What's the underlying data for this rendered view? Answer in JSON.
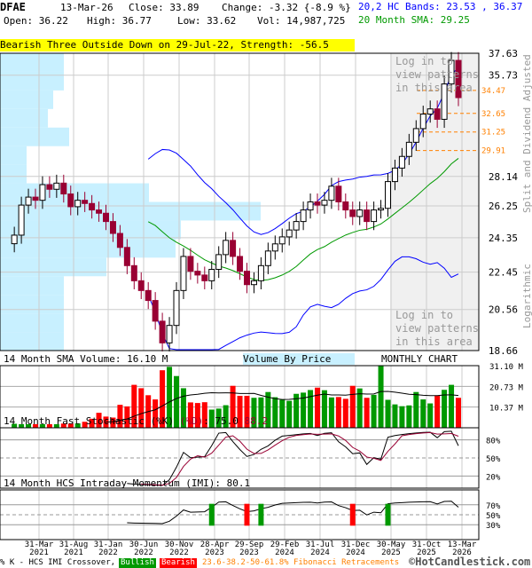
{
  "header": {
    "symbol": "DFAE",
    "date": "13-Mar-26",
    "close": "Close: 33.89",
    "change": "Change: -3.32 {-8.9 %}",
    "open": "Open: 36.22",
    "high": "High: 36.77",
    "low": "Low: 33.62",
    "vol": "Vol: 14,987,725",
    "bands": "20,2 HC Bands: 23.53 , 36.37",
    "sma": "20 Month SMA: 29.25",
    "pattern": "Bearish Three Outside Down on 29-Jul-22, Strength: -56.5"
  },
  "colors": {
    "bull": "#009900",
    "bear": "#ff0000",
    "candle_bear": "#990033",
    "band": "#0000ff",
    "sma": "#009900",
    "fib": "#ff8000",
    "vbp": "#c8f0ff"
  },
  "chart_data": {
    "type": "candlestick",
    "scale": "log",
    "ylim": [
      18.66,
      37.63
    ],
    "yticks": [
      "37.63",
      "35.73",
      "28.14",
      "26.25",
      "24.35",
      "22.45",
      "20.56",
      "18.66"
    ],
    "x_labels": [
      [
        "31-Mar",
        "2021"
      ],
      [
        "31-Aug",
        "2021"
      ],
      [
        "31-Jan",
        "2022"
      ],
      [
        "30-Jun",
        "2022"
      ],
      [
        "30-Nov",
        "2022"
      ],
      [
        "28-Apr",
        "2023"
      ],
      [
        "29-Sep",
        "2023"
      ],
      [
        "29-Feb",
        "2024"
      ],
      [
        "31-Jul",
        "2024"
      ],
      [
        "31-Dec",
        "2024"
      ],
      [
        "30-May",
        "2025"
      ],
      [
        "31-Oct",
        "2025"
      ],
      [
        "13-Mar",
        "2026"
      ]
    ],
    "closes": [
      24.5,
      26.3,
      26.8,
      26.6,
      27.6,
      27.3,
      27.7,
      27.0,
      26.2,
      26.6,
      26.4,
      26.0,
      25.8,
      25.3,
      24.6,
      23.8,
      22.8,
      22.0,
      21.5,
      21.0,
      20.0,
      19.0,
      19.8,
      21.5,
      23.3,
      22.5,
      22.3,
      22.0,
      22.6,
      23.4,
      24.2,
      23.3,
      22.5,
      21.8,
      22.0,
      22.8,
      23.6,
      24.0,
      24.4,
      24.8,
      25.3,
      26.0,
      26.5,
      26.3,
      26.6,
      27.5,
      26.5,
      26.0,
      25.6,
      26.0,
      25.3,
      26.0,
      26.1,
      27.8,
      28.7,
      29.5,
      30.5,
      31.5,
      32.6,
      33.0,
      32.2,
      35.0,
      37.0,
      33.89
    ],
    "volumes_m": [
      2,
      1.8,
      1.8,
      1.8,
      1.8,
      1.8,
      1.8,
      2.1,
      2.1,
      2.2,
      3,
      4.5,
      7.5,
      5.6,
      5.1,
      11.5,
      10.7,
      21.5,
      19.8,
      16.3,
      14.2,
      28.8,
      30.5,
      25.9,
      19.8,
      12.7,
      12.4,
      12.8,
      9.1,
      9.6,
      11.3,
      21.0,
      16.0,
      16.0,
      15.0,
      15.2,
      17.9,
      15.3,
      14.0,
      13.5,
      17.0,
      17.6,
      18.9,
      20.1,
      18.8,
      15.2,
      15.4,
      14.5,
      21.0,
      19.7,
      15.0,
      16.5,
      31.0,
      14.0,
      11.7,
      10.8,
      11.2,
      17.9,
      14.2,
      12.2,
      16.0,
      19.0,
      21.5,
      15.0
    ],
    "volume_yticks": [
      "31.10 M",
      "20.73 M",
      "10.37 M"
    ],
    "volume_by_price": [
      0.12,
      0.12,
      0.1,
      0.09,
      0.13,
      0.05,
      0.05,
      0.28,
      0.49,
      0.34,
      0.33,
      0.2,
      0.12,
      0.12,
      0.12,
      0.12
    ],
    "fib_levels": [
      "34.47",
      "32.65",
      "31.25",
      "29.91"
    ],
    "stoch_yticks": [
      "80%",
      "50%",
      "20%"
    ],
    "imi_yticks": [
      "70%",
      "50%",
      "30%"
    ]
  },
  "labels": {
    "right_axis": "Split and Dividend Adjusted",
    "log": "Logarithmic",
    "login": [
      "Log in to",
      "view patterns",
      "in this area"
    ],
    "vol_title": "14 Month SMA Volume: 16.10 M",
    "vbp": "Volume By Price",
    "monthly": "MONTHLY CHART",
    "stoch_title": "14 Month Fast Stochastic (%K) ",
    "stoch_d": "(%D)",
    "stoch_k_val": ": 75.0",
    "stoch_d_val": "88.2",
    "imi_title": "14 Month HCS Intraday Momentum (IMI): 80.1"
  },
  "footer": {
    "legend": "% K - HCS IMI Crossover,",
    "bullish": "Bullish",
    "bearish": "Bearish",
    "fib": "23.6-38.2-50-61.8% Fibonacci Retracements",
    "brand": "©HotCandlestick.com"
  }
}
